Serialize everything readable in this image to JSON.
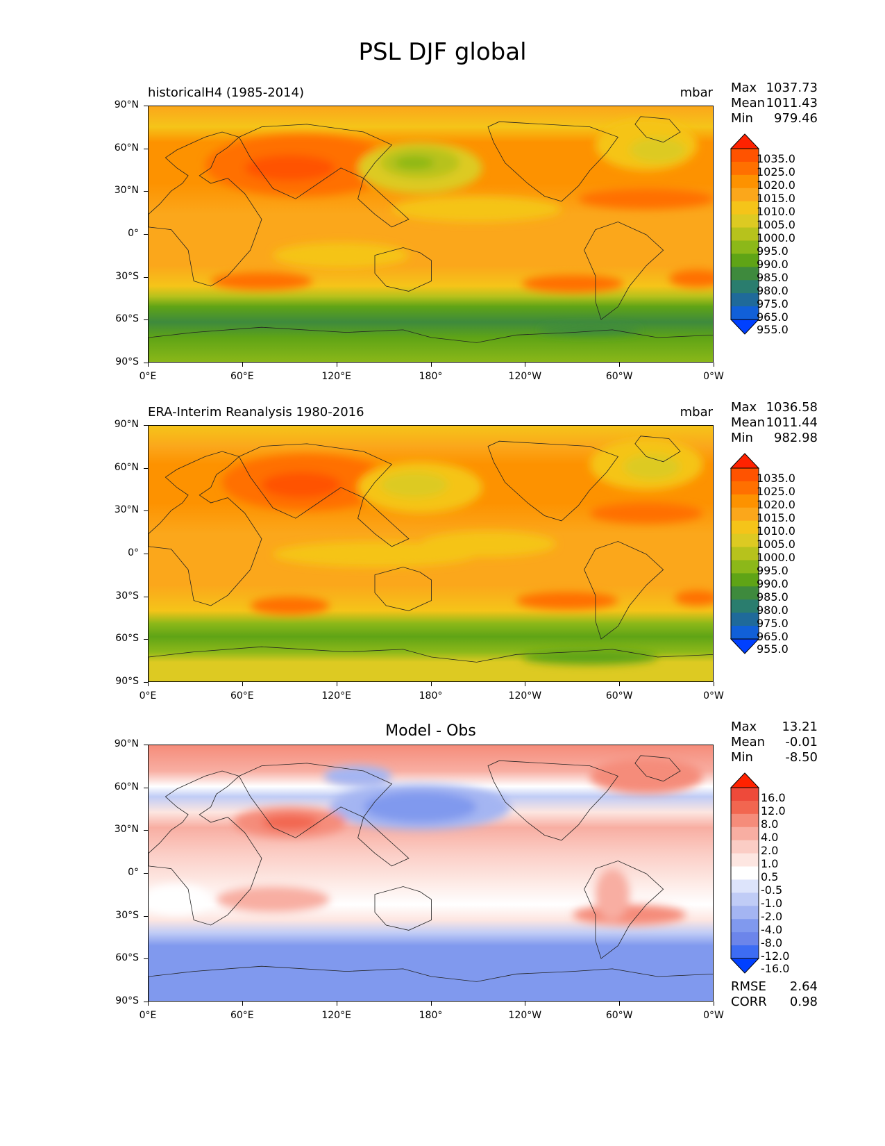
{
  "figure_title": "PSL DJF global",
  "panels": [
    {
      "id": "model",
      "title": "historicalH4 (1985-2014)",
      "units": "mbar",
      "stats": {
        "max_label": "Max",
        "max": "1037.73",
        "mean_label": "Mean",
        "mean": "1011.43",
        "min_label": "Min",
        "min": "979.46"
      },
      "colorbar_levels": [
        "1035.0",
        "1025.0",
        "1020.0",
        "1015.0",
        "1010.0",
        "1005.0",
        "1000.0",
        "995.0",
        "990.0",
        "985.0",
        "980.0",
        "975.0",
        "965.0",
        "955.0"
      ],
      "colorbar_colors": [
        "#ff2200",
        "#ff5300",
        "#ff7000",
        "#fd9200",
        "#fba71b",
        "#f5c419",
        "#ddca22",
        "#b7c21c",
        "#8cb819",
        "#5fa416",
        "#3e8a3d",
        "#2a7d6e",
        "#1f6a9a",
        "#1160d8",
        "#0040ff"
      ]
    },
    {
      "id": "obs",
      "title": "ERA-Interim Reanalysis 1980-2016",
      "units": "mbar",
      "stats": {
        "max_label": "Max",
        "max": "1036.58",
        "mean_label": "Mean",
        "mean": "1011.44",
        "min_label": "Min",
        "min": "982.98"
      },
      "colorbar_levels": [
        "1035.0",
        "1025.0",
        "1020.0",
        "1015.0",
        "1010.0",
        "1005.0",
        "1000.0",
        "995.0",
        "990.0",
        "985.0",
        "980.0",
        "975.0",
        "965.0",
        "955.0"
      ],
      "colorbar_colors": [
        "#ff2200",
        "#ff5300",
        "#ff7000",
        "#fd9200",
        "#fba71b",
        "#f5c419",
        "#ddca22",
        "#b7c21c",
        "#8cb819",
        "#5fa416",
        "#3e8a3d",
        "#2a7d6e",
        "#1f6a9a",
        "#1160d8",
        "#0040ff"
      ]
    },
    {
      "id": "diff",
      "title": "Model - Obs",
      "units": "",
      "stats": {
        "max_label": "Max",
        "max": "13.21",
        "mean_label": "Mean",
        "mean": "-0.01",
        "min_label": "Min",
        "min": "-8.50"
      },
      "colorbar_levels": [
        "16.0",
        "12.0",
        "8.0",
        "4.0",
        "2.0",
        "1.0",
        "0.5",
        "-0.5",
        "-1.0",
        "-2.0",
        "-4.0",
        "-8.0",
        "-12.0",
        "-16.0"
      ],
      "colorbar_colors": [
        "#ff2200",
        "#ee4a3a",
        "#f26650",
        "#f58c7a",
        "#f8aea2",
        "#fbcdc5",
        "#fde6e1",
        "#ffffff",
        "#dde4fb",
        "#c0ccf6",
        "#a4b5f2",
        "#8099ee",
        "#6c85ea",
        "#3d6cf3",
        "#0040ff"
      ],
      "rmse_label": "RMSE",
      "rmse": "2.64",
      "corr_label": "CORR",
      "corr": "0.98"
    }
  ],
  "axes": {
    "y_ticks": [
      "90°N",
      "60°N",
      "30°N",
      "0°",
      "30°S",
      "60°S",
      "90°S"
    ],
    "x_ticks": [
      "0°E",
      "60°E",
      "120°E",
      "180°",
      "120°W",
      "60°W",
      "0°W"
    ]
  }
}
